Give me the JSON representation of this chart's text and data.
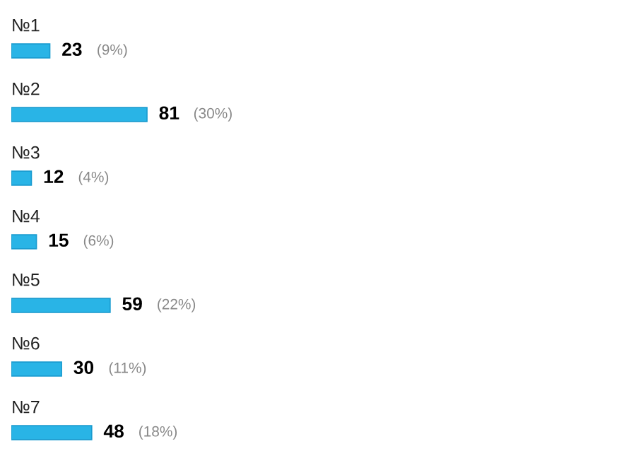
{
  "chart_data": {
    "type": "bar",
    "orientation": "horizontal",
    "categories": [
      "№1",
      "№2",
      "№3",
      "№4",
      "№5",
      "№6",
      "№7"
    ],
    "values": [
      23,
      81,
      12,
      15,
      59,
      30,
      48
    ],
    "color": "#29b4e6",
    "data_labels": true,
    "annotations": [
      "(9%)",
      "(30%)",
      "(4%)",
      "(6%)",
      "(22%)",
      "(11%)",
      "(18%)"
    ]
  }
}
